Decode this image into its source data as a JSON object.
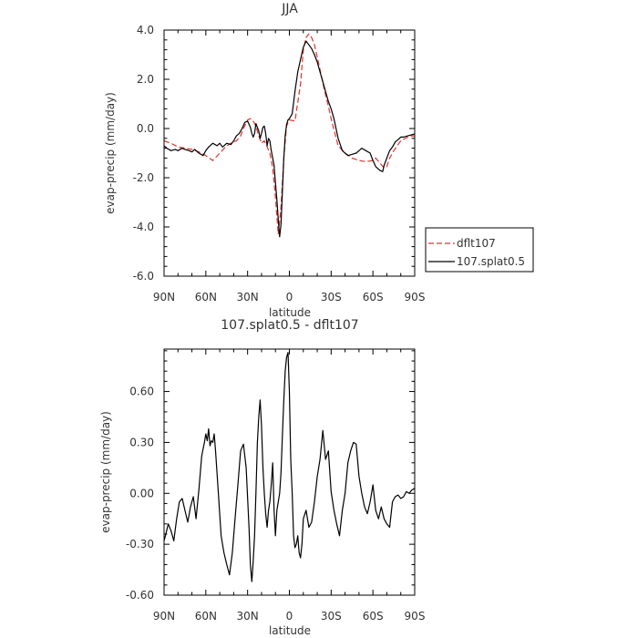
{
  "chart_data": [
    {
      "type": "line",
      "title": "JJA",
      "xlabel": "latitude",
      "ylabel": "evap-precip (mm/day)",
      "xlim": [
        90,
        -90
      ],
      "ylim": [
        -6,
        4
      ],
      "x_ticks": [
        {
          "value": 90,
          "label": "90N"
        },
        {
          "value": 60,
          "label": "60N"
        },
        {
          "value": 30,
          "label": "30N"
        },
        {
          "value": 0,
          "label": "0"
        },
        {
          "value": -30,
          "label": "30S"
        },
        {
          "value": -60,
          "label": "60S"
        },
        {
          "value": -90,
          "label": "90S"
        }
      ],
      "y_ticks": [
        {
          "value": 4,
          "label": "4.0"
        },
        {
          "value": 2,
          "label": "2.0"
        },
        {
          "value": 0,
          "label": "0.0"
        },
        {
          "value": -2,
          "label": "-2.0"
        },
        {
          "value": -4,
          "label": "-4.0"
        },
        {
          "value": -6,
          "label": "-6.0"
        }
      ],
      "legend": {
        "position": "right"
      },
      "series": [
        {
          "name": "dflt107",
          "color": "#e8322a",
          "dash": "dashed",
          "x": [
            90,
            85,
            80,
            75,
            70,
            65,
            60,
            55,
            50,
            45,
            42,
            40,
            38,
            35,
            33,
            30,
            28,
            26,
            24,
            22,
            20,
            18,
            16,
            14,
            12,
            10,
            8,
            6,
            4,
            2,
            0,
            -4,
            -8,
            -10,
            -12,
            -14,
            -16,
            -18,
            -20,
            -22,
            -25,
            -28,
            -30,
            -35,
            -40,
            -45,
            -50,
            -55,
            -60,
            -62,
            -65,
            -68,
            -70,
            -72,
            -75,
            -80,
            -85,
            -88,
            -90
          ],
          "y": [
            -0.5,
            -0.6,
            -0.75,
            -0.8,
            -0.85,
            -0.95,
            -1.1,
            -1.3,
            -1.0,
            -0.7,
            -0.6,
            -0.55,
            -0.5,
            -0.3,
            0.0,
            0.35,
            0.4,
            0.3,
            0.1,
            -0.3,
            -0.6,
            -0.5,
            -0.75,
            -1.0,
            -1.6,
            -2.8,
            -4.3,
            -3.2,
            -1.2,
            0.1,
            0.35,
            0.3,
            1.8,
            3.2,
            3.7,
            3.85,
            3.7,
            3.4,
            2.9,
            2.4,
            1.6,
            0.9,
            0.4,
            -0.7,
            -1.0,
            -1.2,
            -1.3,
            -1.35,
            -1.3,
            -1.2,
            -1.4,
            -1.6,
            -1.55,
            -1.2,
            -0.9,
            -0.5,
            -0.35,
            -0.3,
            -0.3
          ]
        },
        {
          "name": "107.splat0.5",
          "color": "#000000",
          "dash": "solid",
          "x": [
            90,
            88,
            85,
            82,
            80,
            77,
            75,
            72,
            70,
            68,
            65,
            62,
            60,
            58,
            55,
            52,
            50,
            48,
            45,
            42,
            40,
            38,
            36,
            34,
            32,
            30,
            28,
            27,
            26,
            25,
            24,
            22,
            21,
            20,
            19,
            18,
            17,
            16,
            15,
            14,
            13,
            12,
            11,
            10,
            9,
            8,
            7,
            6,
            5,
            4,
            3,
            2,
            1,
            0,
            -2,
            -4,
            -6,
            -8,
            -10,
            -12,
            -14,
            -16,
            -18,
            -20,
            -22,
            -24,
            -26,
            -28,
            -30,
            -32,
            -35,
            -38,
            -40,
            -42,
            -45,
            -48,
            -50,
            -52,
            -55,
            -58,
            -60,
            -62,
            -65,
            -67,
            -68,
            -70,
            -72,
            -74,
            -76,
            -78,
            -80,
            -82,
            -85,
            -88,
            -90
          ],
          "y": [
            -0.7,
            -0.8,
            -0.9,
            -0.85,
            -0.9,
            -0.8,
            -0.85,
            -0.9,
            -0.95,
            -0.85,
            -1.0,
            -1.1,
            -0.9,
            -0.75,
            -0.6,
            -0.7,
            -0.6,
            -0.75,
            -0.6,
            -0.65,
            -0.5,
            -0.3,
            -0.2,
            0.0,
            0.25,
            0.3,
            0.05,
            -0.2,
            -0.35,
            -0.2,
            0.2,
            -0.1,
            -0.4,
            -0.2,
            0.05,
            0.1,
            -0.2,
            -0.7,
            -0.4,
            -0.5,
            -0.9,
            -1.2,
            -1.5,
            -2.2,
            -2.9,
            -3.7,
            -4.4,
            -3.9,
            -2.5,
            -1.2,
            -0.3,
            0.15,
            0.35,
            0.4,
            0.6,
            1.5,
            2.3,
            2.8,
            3.3,
            3.55,
            3.4,
            3.25,
            3.0,
            2.7,
            2.3,
            1.9,
            1.5,
            1.1,
            0.8,
            0.4,
            -0.4,
            -0.9,
            -1.0,
            -1.1,
            -1.05,
            -1.0,
            -0.9,
            -0.8,
            -0.9,
            -1.0,
            -1.3,
            -1.55,
            -1.7,
            -1.75,
            -1.5,
            -1.2,
            -0.9,
            -0.75,
            -0.55,
            -0.45,
            -0.35,
            -0.35,
            -0.3,
            -0.25,
            -0.22
          ]
        }
      ]
    },
    {
      "type": "line",
      "title": "107.splat0.5 - dflt107",
      "xlabel": "latitude",
      "ylabel": "evap-precip (mm/day)",
      "xlim": [
        90,
        -90
      ],
      "ylim": [
        -0.6,
        0.85
      ],
      "x_ticks": [
        {
          "value": 90,
          "label": "90N"
        },
        {
          "value": 60,
          "label": "60N"
        },
        {
          "value": 30,
          "label": "30N"
        },
        {
          "value": 0,
          "label": "0"
        },
        {
          "value": -30,
          "label": "30S"
        },
        {
          "value": -60,
          "label": "60S"
        },
        {
          "value": -90,
          "label": "90S"
        }
      ],
      "y_ticks": [
        {
          "value": 0.6,
          "label": "0.60"
        },
        {
          "value": 0.3,
          "label": "0.30"
        },
        {
          "value": 0.0,
          "label": "0.00"
        },
        {
          "value": -0.3,
          "label": "-0.30"
        },
        {
          "value": -0.6,
          "label": "-0.60"
        }
      ],
      "series": [
        {
          "name": "",
          "color": "#000000",
          "dash": "solid",
          "x": [
            90,
            89,
            87,
            85,
            83,
            81,
            79,
            77,
            75,
            73,
            71,
            69,
            67,
            65,
            63,
            61,
            60,
            59,
            58,
            57,
            56,
            55,
            54,
            53,
            51,
            49,
            47,
            45,
            43,
            41,
            39,
            37,
            35,
            33,
            31,
            29,
            28,
            27,
            26,
            25,
            24,
            23,
            22,
            21,
            20,
            19,
            18,
            17,
            16,
            15,
            14,
            13,
            12,
            11,
            10,
            9,
            8,
            7,
            6,
            5,
            4,
            3,
            2,
            1,
            0,
            -1,
            -2,
            -3,
            -4,
            -5,
            -6,
            -7,
            -8,
            -9,
            -10,
            -12,
            -14,
            -16,
            -18,
            -20,
            -22,
            -24,
            -26,
            -28,
            -30,
            -32,
            -34,
            -36,
            -38,
            -40,
            -42,
            -44,
            -46,
            -48,
            -50,
            -52,
            -54,
            -56,
            -58,
            -60,
            -62,
            -64,
            -66,
            -68,
            -70,
            -72,
            -74,
            -76,
            -78,
            -80,
            -82,
            -84,
            -86,
            -88,
            -90
          ],
          "y": [
            -0.28,
            -0.25,
            -0.18,
            -0.22,
            -0.28,
            -0.15,
            -0.05,
            -0.03,
            -0.1,
            -0.17,
            -0.08,
            -0.02,
            -0.15,
            0.02,
            0.22,
            0.3,
            0.35,
            0.31,
            0.38,
            0.28,
            0.31,
            0.3,
            0.35,
            0.25,
            0.0,
            -0.25,
            -0.35,
            -0.42,
            -0.48,
            -0.35,
            -0.15,
            0.05,
            0.25,
            0.29,
            0.15,
            -0.2,
            -0.42,
            -0.52,
            -0.4,
            -0.25,
            0.0,
            0.3,
            0.45,
            0.55,
            0.4,
            0.15,
            0.0,
            -0.12,
            -0.2,
            -0.1,
            -0.05,
            0.05,
            0.18,
            -0.1,
            -0.25,
            -0.1,
            -0.05,
            0.0,
            0.12,
            0.35,
            0.55,
            0.72,
            0.8,
            0.83,
            0.6,
            0.2,
            0.0,
            -0.25,
            -0.32,
            -0.3,
            -0.25,
            -0.35,
            -0.38,
            -0.3,
            -0.15,
            -0.1,
            -0.2,
            -0.17,
            -0.05,
            0.1,
            0.2,
            0.37,
            0.2,
            0.25,
            0.01,
            -0.1,
            -0.18,
            -0.25,
            -0.1,
            0.0,
            0.18,
            0.25,
            0.3,
            0.29,
            0.1,
            0.0,
            -0.08,
            -0.12,
            -0.05,
            0.05,
            -0.1,
            -0.15,
            -0.08,
            -0.15,
            -0.18,
            -0.2,
            -0.05,
            -0.02,
            -0.01,
            -0.03,
            -0.02,
            0.01,
            0.0,
            0.02,
            0.03
          ]
        }
      ]
    }
  ]
}
